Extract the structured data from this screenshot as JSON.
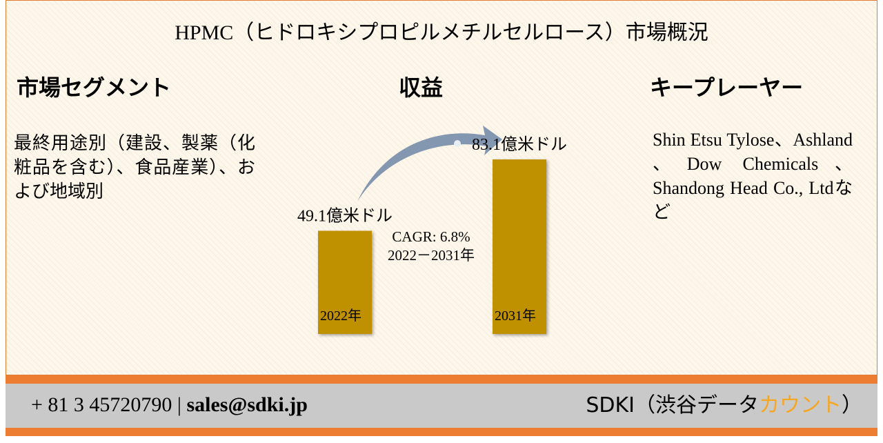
{
  "header": {
    "title": "HPMC（ヒドロキシプロピルメチルセルロース）市場概況"
  },
  "segments": {
    "heading": "市場セグメント",
    "text": "最終用途別（建設、製薬（化粧品を含む）、食品産業）、および地域別"
  },
  "revenue": {
    "heading": "収益"
  },
  "chart_data": {
    "type": "bar",
    "categories": [
      "2022年",
      "2031年"
    ],
    "values": [
      49.1,
      83.1
    ],
    "value_labels": [
      "49.1億米ドル",
      "83.1億米ドル"
    ],
    "color": "#bf9000",
    "annotations": [
      "CAGR: 6.8%",
      "2022－2031年"
    ]
  },
  "players": {
    "heading": "キープレーヤー",
    "text": "Shin Etsu Tylose、Ashland 、Dow Chemicals、Shandong Head Co., Ltdなど"
  },
  "footer": {
    "phone": "+ 81 3 45720790",
    "separator": "|",
    "email": "sales@sdki.jp",
    "brand": "SDKI（渋谷データ",
    "brand_highlight": "カウント",
    "brand_end": "）"
  }
}
